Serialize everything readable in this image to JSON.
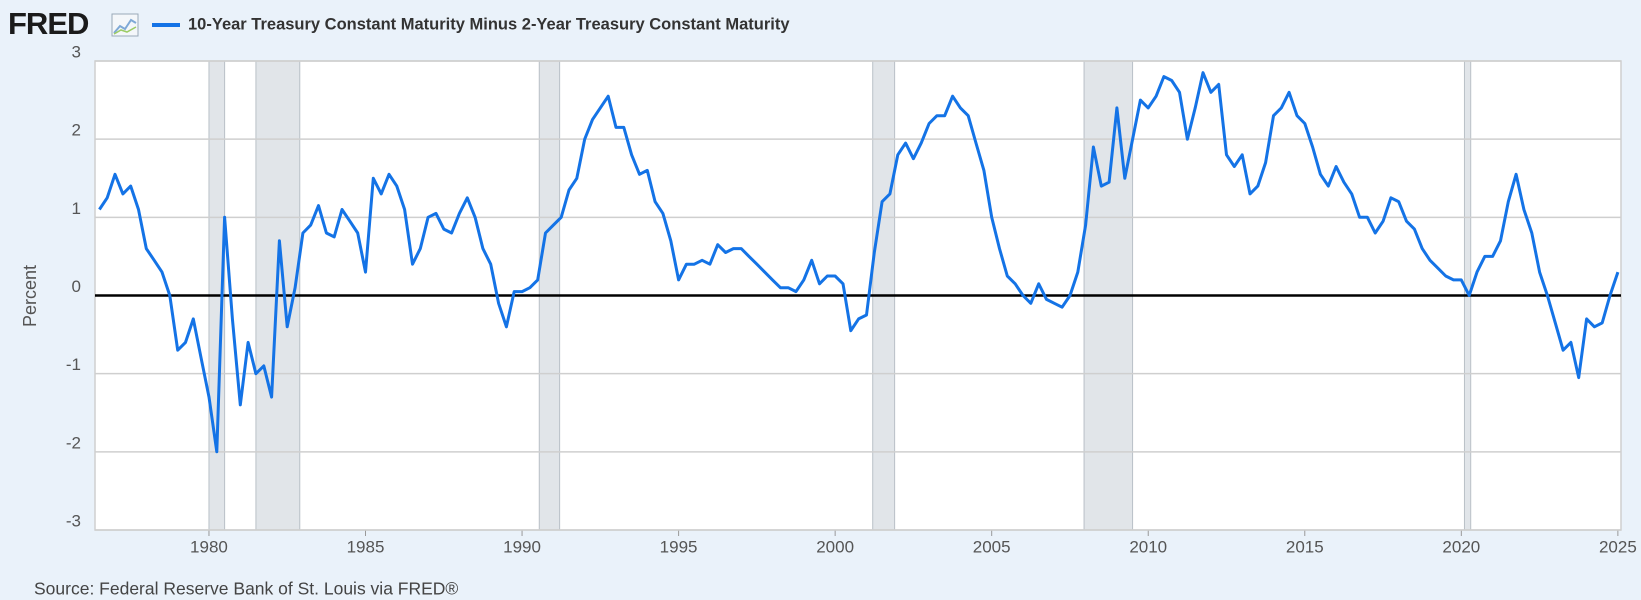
{
  "logo": "FRED",
  "source": "Source: Federal Reserve Bank of St. Louis via FRED®",
  "chart_data": {
    "type": "line",
    "y_label": "Percent",
    "xlim": [
      1976.36,
      2025.1
    ],
    "xticks": [
      1980,
      1985,
      1990,
      1995,
      2000,
      2005,
      2010,
      2015,
      2020,
      2025
    ],
    "ylim": [
      -3,
      3
    ],
    "yticks": [
      -3,
      -2,
      -1,
      0,
      1,
      2,
      3
    ],
    "grid": true,
    "recessions": [
      [
        1980.0,
        1980.5
      ],
      [
        1981.5,
        1982.9
      ],
      [
        1990.55,
        1991.2
      ],
      [
        2001.2,
        2001.9
      ],
      [
        2007.95,
        2009.5
      ],
      [
        2020.1,
        2020.3
      ]
    ],
    "x": [
      1976.5,
      1976.75,
      1977,
      1977.25,
      1977.5,
      1977.75,
      1978,
      1978.25,
      1978.5,
      1978.75,
      1979,
      1979.25,
      1979.5,
      1979.75,
      1980,
      1980.25,
      1980.5,
      1980.75,
      1981,
      1981.25,
      1981.5,
      1981.75,
      1982,
      1982.25,
      1982.5,
      1982.75,
      1983,
      1983.25,
      1983.5,
      1983.75,
      1984,
      1984.25,
      1984.5,
      1984.75,
      1985,
      1985.25,
      1985.5,
      1985.75,
      1986,
      1986.25,
      1986.5,
      1986.75,
      1987,
      1987.25,
      1987.5,
      1987.75,
      1988,
      1988.25,
      1988.5,
      1988.75,
      1989,
      1989.25,
      1989.5,
      1989.75,
      1990,
      1990.25,
      1990.5,
      1990.75,
      1991,
      1991.25,
      1991.5,
      1991.75,
      1992,
      1992.25,
      1992.5,
      1992.75,
      1993,
      1993.25,
      1993.5,
      1993.75,
      1994,
      1994.25,
      1994.5,
      1994.75,
      1995,
      1995.25,
      1995.5,
      1995.75,
      1996,
      1996.25,
      1996.5,
      1996.75,
      1997,
      1997.25,
      1997.5,
      1997.75,
      1998,
      1998.25,
      1998.5,
      1998.75,
      1999,
      1999.25,
      1999.5,
      1999.75,
      2000,
      2000.25,
      2000.5,
      2000.75,
      2001,
      2001.25,
      2001.5,
      2001.75,
      2002,
      2002.25,
      2002.5,
      2002.75,
      2003,
      2003.25,
      2003.5,
      2003.75,
      2004,
      2004.25,
      2004.5,
      2004.75,
      2005,
      2005.25,
      2005.5,
      2005.75,
      2006,
      2006.25,
      2006.5,
      2006.75,
      2007,
      2007.25,
      2007.5,
      2007.75,
      2008,
      2008.25,
      2008.5,
      2008.75,
      2009,
      2009.25,
      2009.5,
      2009.75,
      2010,
      2010.25,
      2010.5,
      2010.75,
      2011,
      2011.25,
      2011.5,
      2011.75,
      2012,
      2012.25,
      2012.5,
      2012.75,
      2013,
      2013.25,
      2013.5,
      2013.75,
      2014,
      2014.25,
      2014.5,
      2014.75,
      2015,
      2015.25,
      2015.5,
      2015.75,
      2016,
      2016.25,
      2016.5,
      2016.75,
      2017,
      2017.25,
      2017.5,
      2017.75,
      2018,
      2018.25,
      2018.5,
      2018.75,
      2019,
      2019.25,
      2019.5,
      2019.75,
      2020,
      2020.25,
      2020.5,
      2020.75,
      2021,
      2021.25,
      2021.5,
      2021.75,
      2022,
      2022.25,
      2022.5,
      2022.75,
      2023,
      2023.25,
      2023.5,
      2023.75,
      2024,
      2024.25,
      2024.5,
      2024.75,
      2025
    ],
    "series": [
      {
        "name": "10-Year Treasury Constant Maturity Minus 2-Year Treasury Constant Maturity",
        "color": "#1473e6",
        "values": [
          1.1,
          1.25,
          1.55,
          1.3,
          1.4,
          1.1,
          0.6,
          0.45,
          0.3,
          0.0,
          -0.7,
          -0.6,
          -0.3,
          -0.8,
          -1.3,
          -2.0,
          1.0,
          -0.3,
          -1.4,
          -0.6,
          -1.0,
          -0.9,
          -1.3,
          0.7,
          -0.4,
          0.1,
          0.8,
          0.9,
          1.15,
          0.8,
          0.75,
          1.1,
          0.95,
          0.8,
          0.3,
          1.5,
          1.3,
          1.55,
          1.4,
          1.1,
          0.4,
          0.6,
          1.0,
          1.05,
          0.85,
          0.8,
          1.05,
          1.25,
          1.0,
          0.6,
          0.4,
          -0.1,
          -0.4,
          0.05,
          0.05,
          0.1,
          0.2,
          0.8,
          0.9,
          1.0,
          1.35,
          1.5,
          2.0,
          2.25,
          2.4,
          2.55,
          2.15,
          2.15,
          1.8,
          1.55,
          1.6,
          1.2,
          1.05,
          0.7,
          0.2,
          0.4,
          0.4,
          0.45,
          0.4,
          0.65,
          0.55,
          0.6,
          0.6,
          0.5,
          0.4,
          0.3,
          0.2,
          0.1,
          0.1,
          0.05,
          0.2,
          0.45,
          0.15,
          0.25,
          0.25,
          0.15,
          -0.45,
          -0.3,
          -0.25,
          0.55,
          1.2,
          1.3,
          1.8,
          1.95,
          1.75,
          1.95,
          2.2,
          2.3,
          2.3,
          2.55,
          2.4,
          2.3,
          1.95,
          1.6,
          1.0,
          0.6,
          0.25,
          0.15,
          0.0,
          -0.1,
          0.15,
          -0.05,
          -0.1,
          -0.15,
          0.0,
          0.3,
          0.9,
          1.9,
          1.4,
          1.45,
          2.4,
          1.5,
          2.0,
          2.5,
          2.4,
          2.55,
          2.8,
          2.75,
          2.6,
          2.0,
          2.4,
          2.85,
          2.6,
          2.7,
          1.8,
          1.65,
          1.8,
          1.3,
          1.4,
          1.7,
          2.3,
          2.4,
          2.6,
          2.3,
          2.2,
          1.9,
          1.55,
          1.4,
          1.65,
          1.45,
          1.3,
          1.0,
          1.0,
          0.8,
          0.95,
          1.25,
          1.2,
          0.95,
          0.85,
          0.6,
          0.45,
          0.35,
          0.25,
          0.2,
          0.2,
          0.0,
          0.3,
          0.5,
          0.5,
          0.7,
          1.2,
          1.55,
          1.1,
          0.8,
          0.3,
          0.0,
          -0.35,
          -0.7,
          -0.6,
          -1.05,
          -0.3,
          -0.4,
          -0.35,
          0.0,
          0.3
        ]
      }
    ]
  }
}
